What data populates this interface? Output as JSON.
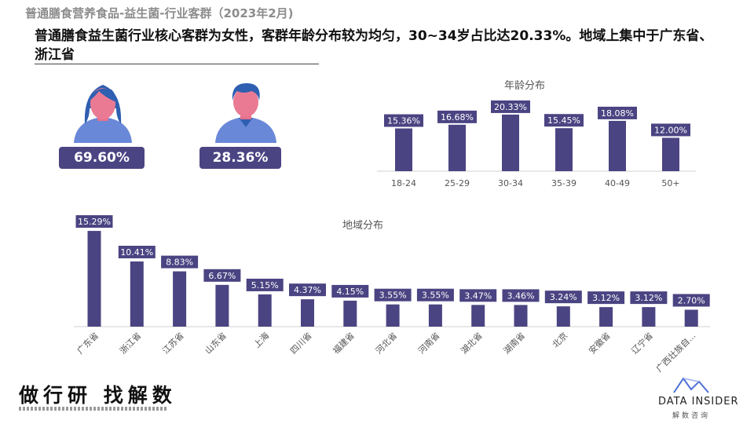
{
  "header": {
    "title": "普通膳食营养食品-益生菌-行业客群（2023年2月)"
  },
  "headline": "普通膳食益生菌行业核心客群为女性，客群年龄分布较为均匀，30~34岁占比达20.33%。地域上集中于广东省、浙江省",
  "gender": {
    "female_pct": "69.60%",
    "male_pct": "28.36%"
  },
  "logos": {
    "left_mark": "做行研 找解数",
    "right_mark": "DATA INSIDER",
    "right_mark_cn": "解数咨询"
  },
  "chart_data": [
    {
      "type": "bar",
      "title": "年龄分布",
      "categories": [
        "18-24",
        "25-29",
        "30-34",
        "35-39",
        "40-49",
        "50+"
      ],
      "values": [
        15.36,
        16.68,
        20.33,
        15.45,
        18.08,
        12.0
      ],
      "labels": [
        "15.36%",
        "16.68%",
        "20.33%",
        "15.45%",
        "18.08%",
        "12.00%"
      ],
      "ylim": [
        0,
        22
      ],
      "xlabel": "",
      "ylabel": "",
      "grid": false,
      "color": "#4b4482"
    },
    {
      "type": "bar",
      "title": "地域分布",
      "categories": [
        "广东省",
        "浙江省",
        "江苏省",
        "山东省",
        "上海",
        "四川省",
        "福建省",
        "河北省",
        "河南省",
        "湖北省",
        "湖南省",
        "北京",
        "安徽省",
        "辽宁省",
        "广西壮族自..."
      ],
      "values": [
        15.29,
        10.41,
        8.83,
        6.67,
        5.15,
        4.37,
        4.15,
        3.55,
        3.55,
        3.47,
        3.46,
        3.24,
        3.12,
        3.12,
        2.7
      ],
      "labels": [
        "15.29%",
        "10.41%",
        "8.83%",
        "6.67%",
        "5.15%",
        "4.37%",
        "4.15%",
        "3.55%",
        "3.55%",
        "3.47%",
        "3.46%",
        "3.24%",
        "3.12%",
        "3.12%",
        "2.70%"
      ],
      "ylim": [
        0,
        15.3
      ],
      "xlabel": "",
      "ylabel": "",
      "grid": false,
      "color": "#4b4482"
    }
  ]
}
